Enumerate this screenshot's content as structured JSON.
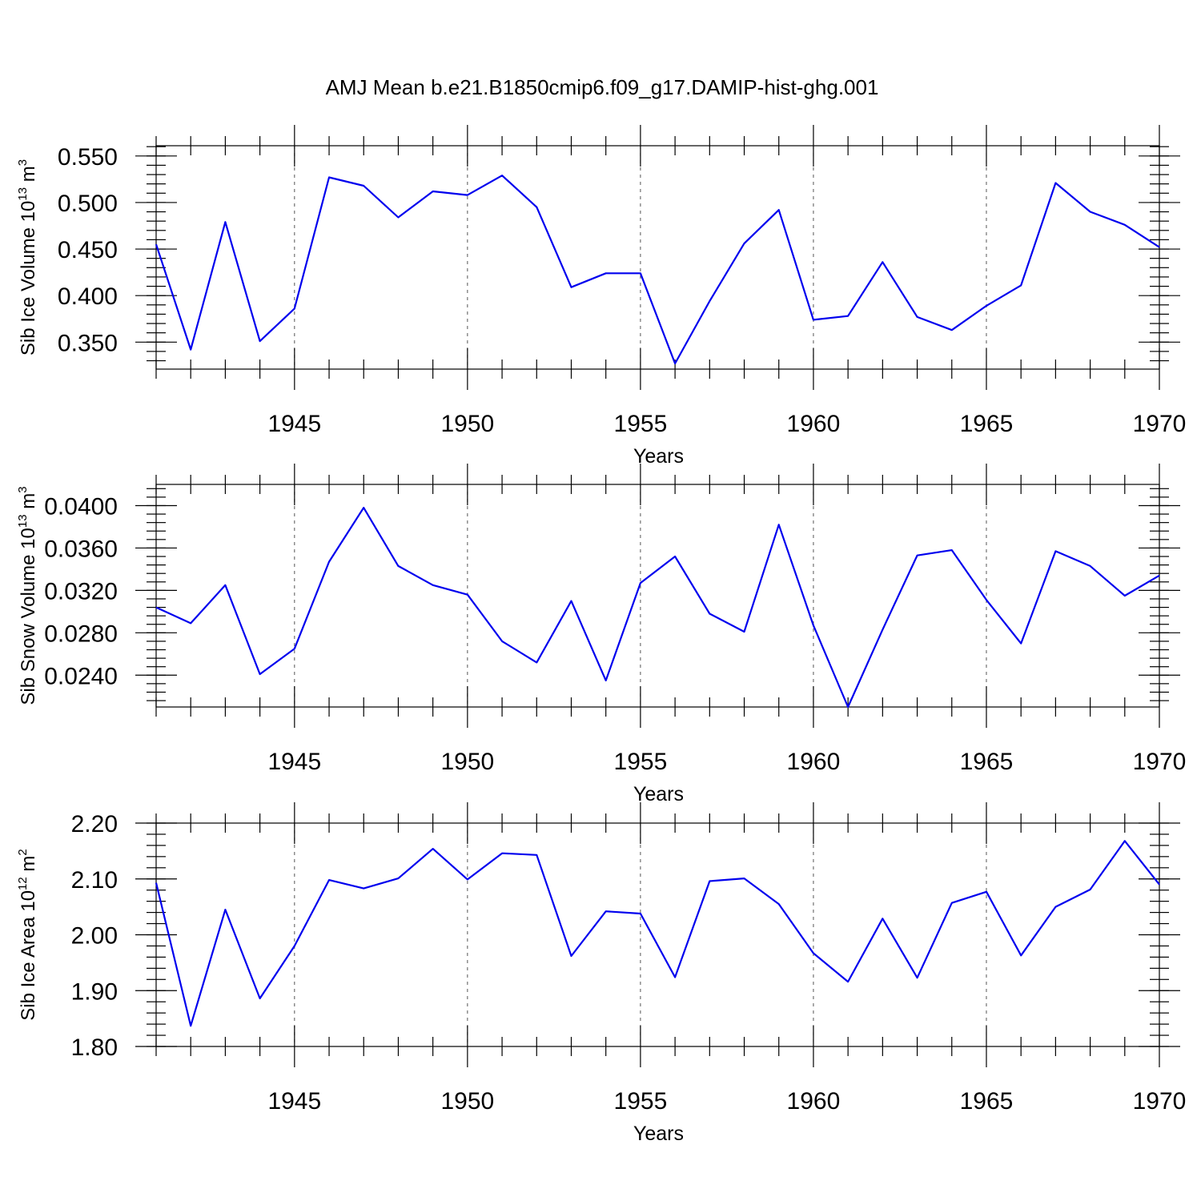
{
  "title": "AMJ Mean b.e21.B1850cmip6.f09_g17.DAMIP-hist-ghg.001",
  "colors": {
    "line": "#0000ee",
    "axis": "#000000",
    "grid": "#555555"
  },
  "chart_data": [
    {
      "type": "line",
      "name": "ice-volume",
      "ylabel": {
        "main": "Sib Ice Volume 10",
        "sup": "13",
        "unit": " m",
        "unit_sup": "3"
      },
      "xlabel": "Years",
      "xlim": [
        1941,
        1970
      ],
      "ylim": [
        0.321,
        0.561
      ],
      "yticks": [
        0.35,
        0.4,
        0.45,
        0.5,
        0.55
      ],
      "ytick_labels": [
        "0.350",
        "0.400",
        "0.450",
        "0.500",
        "0.550"
      ],
      "yminor_step": 0.01,
      "xticks": [
        1945,
        1950,
        1955,
        1960,
        1965,
        1970
      ],
      "xtick_labels": [
        "1945",
        "1950",
        "1955",
        "1960",
        "1965",
        "1970"
      ],
      "grid_x": [
        1945,
        1950,
        1955,
        1960,
        1965
      ],
      "x": [
        1941,
        1942,
        1943,
        1944,
        1945,
        1946,
        1947,
        1948,
        1949,
        1950,
        1951,
        1952,
        1953,
        1954,
        1955,
        1956,
        1957,
        1958,
        1959,
        1960,
        1961,
        1962,
        1963,
        1964,
        1965,
        1966,
        1967,
        1968,
        1969,
        1970
      ],
      "values": [
        0.455,
        0.342,
        0.479,
        0.351,
        0.386,
        0.527,
        0.518,
        0.484,
        0.512,
        0.508,
        0.529,
        0.495,
        0.409,
        0.424,
        0.424,
        0.327,
        0.394,
        0.456,
        0.492,
        0.374,
        0.378,
        0.436,
        0.377,
        0.363,
        0.389,
        0.411,
        0.521,
        0.49,
        0.476,
        0.452
      ]
    },
    {
      "type": "line",
      "name": "snow-volume",
      "ylabel": {
        "main": "Sib Snow Volume 10",
        "sup": "13",
        "unit": " m",
        "unit_sup": "3"
      },
      "xlabel": "Years",
      "xlim": [
        1941,
        1970
      ],
      "ylim": [
        0.021,
        0.042
      ],
      "yticks": [
        0.024,
        0.028,
        0.032,
        0.036,
        0.04
      ],
      "ytick_labels": [
        "0.0240",
        "0.0280",
        "0.0320",
        "0.0360",
        "0.0400"
      ],
      "yminor_step": 0.0008,
      "xticks": [
        1945,
        1950,
        1955,
        1960,
        1965,
        1970
      ],
      "xtick_labels": [
        "1945",
        "1950",
        "1955",
        "1960",
        "1965",
        "1970"
      ],
      "grid_x": [
        1945,
        1950,
        1955,
        1960,
        1965
      ],
      "x": [
        1941,
        1942,
        1943,
        1944,
        1945,
        1946,
        1947,
        1948,
        1949,
        1950,
        1951,
        1952,
        1953,
        1954,
        1955,
        1956,
        1957,
        1958,
        1959,
        1960,
        1961,
        1962,
        1963,
        1964,
        1965,
        1966,
        1967,
        1968,
        1969,
        1970
      ],
      "values": [
        0.0304,
        0.0289,
        0.0325,
        0.0241,
        0.0265,
        0.0347,
        0.0398,
        0.0343,
        0.0325,
        0.0316,
        0.0272,
        0.0252,
        0.031,
        0.0235,
        0.0327,
        0.0352,
        0.0298,
        0.0281,
        0.0382,
        0.0287,
        0.021,
        0.0283,
        0.0353,
        0.0358,
        0.0311,
        0.027,
        0.0357,
        0.0343,
        0.0315,
        0.0334
      ]
    },
    {
      "type": "line",
      "name": "ice-area",
      "ylabel": {
        "main": "Sib Ice Area 10",
        "sup": "12",
        "unit": " m",
        "unit_sup": "2"
      },
      "xlabel": "Years",
      "xlim": [
        1941,
        1970
      ],
      "ylim": [
        1.8,
        2.2
      ],
      "yticks": [
        1.8,
        1.9,
        2.0,
        2.1,
        2.2
      ],
      "ytick_labels": [
        "1.80",
        "1.90",
        "2.00",
        "2.10",
        "2.20"
      ],
      "yminor_step": 0.02,
      "xticks": [
        1945,
        1950,
        1955,
        1960,
        1965,
        1970
      ],
      "xtick_labels": [
        "1945",
        "1950",
        "1955",
        "1960",
        "1965",
        "1970"
      ],
      "grid_x": [
        1945,
        1950,
        1955,
        1960,
        1965
      ],
      "x": [
        1941,
        1942,
        1943,
        1944,
        1945,
        1946,
        1947,
        1948,
        1949,
        1950,
        1951,
        1952,
        1953,
        1954,
        1955,
        1956,
        1957,
        1958,
        1959,
        1960,
        1961,
        1962,
        1963,
        1964,
        1965,
        1966,
        1967,
        1968,
        1969,
        1970
      ],
      "values": [
        2.093,
        1.837,
        2.045,
        1.886,
        1.98,
        2.098,
        2.083,
        2.101,
        2.154,
        2.099,
        2.146,
        2.143,
        1.962,
        2.042,
        2.038,
        1.924,
        2.096,
        2.101,
        2.055,
        1.967,
        1.916,
        2.029,
        1.923,
        2.057,
        2.077,
        1.963,
        2.05,
        2.081,
        2.168,
        2.09
      ]
    }
  ]
}
